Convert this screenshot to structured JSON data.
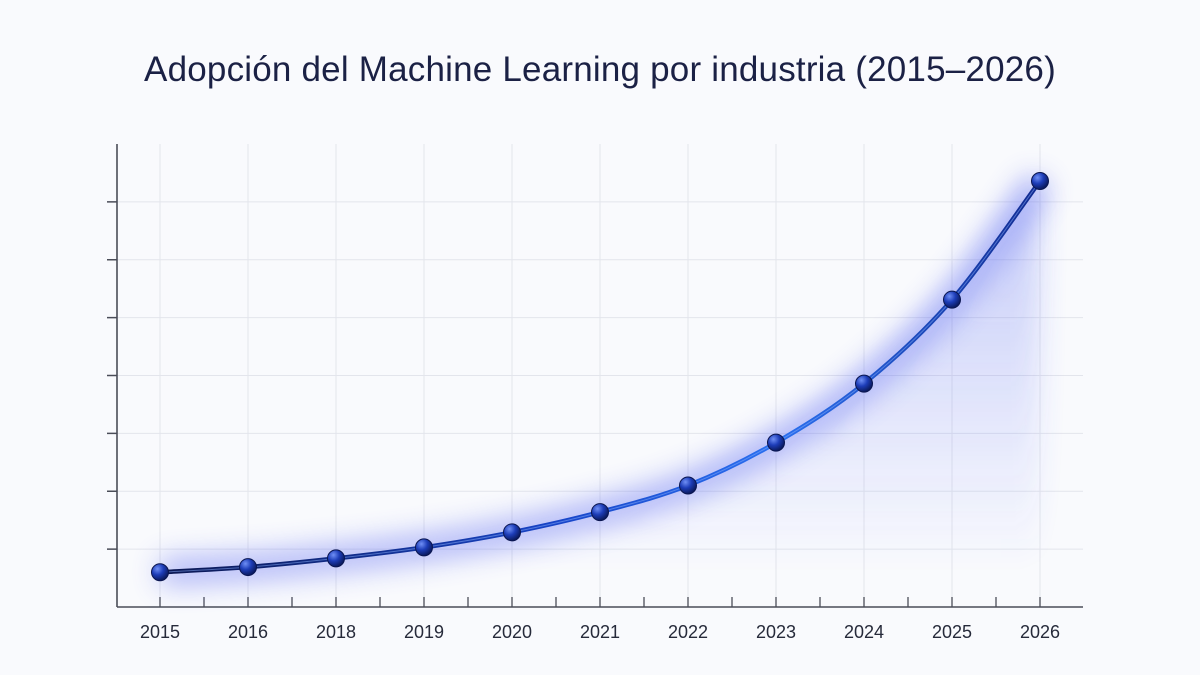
{
  "chart_data": {
    "type": "line",
    "title": "Adopción del Machine Learning por industria (2015–2026)",
    "xlabel": "",
    "ylabel": "",
    "categories": [
      "2015",
      "2016",
      "2018",
      "2019",
      "2020",
      "2021",
      "2022",
      "2023",
      "2024",
      "2025",
      "2026"
    ],
    "series": [
      {
        "values": [
          0.6,
          0.69,
          0.84,
          1.03,
          1.29,
          1.64,
          2.1,
          2.84,
          3.86,
          5.31,
          7.36
        ]
      }
    ],
    "ylim": [
      0,
      8
    ],
    "y_ticks_count": 7,
    "y_tick_labels_shown": false,
    "grid": true,
    "legend": "none",
    "colors": {
      "line": "#0d1f6e",
      "glow": "#4d5cf0",
      "marker": "#1538b0",
      "grid": "#e3e5ec",
      "axis": "#4a4d58"
    }
  }
}
